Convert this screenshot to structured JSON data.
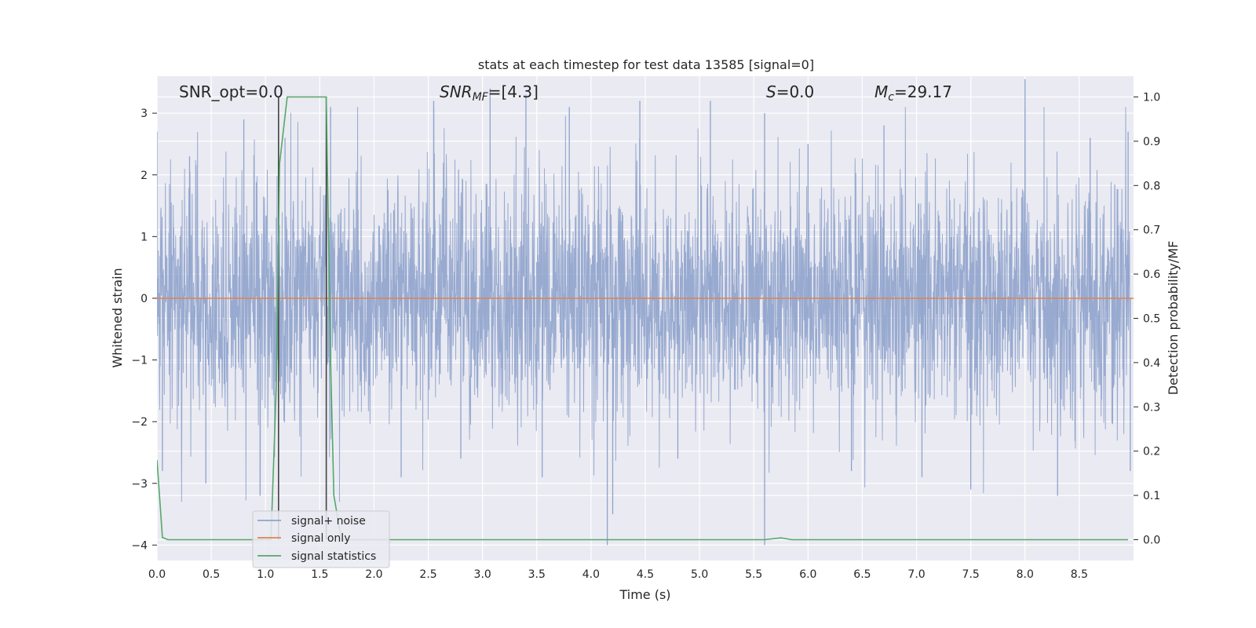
{
  "chart_data": {
    "type": "line",
    "title": "stats at each timestep for test data 13585 [signal=0]",
    "xlabel": "Time (s)",
    "ylabel": "Whitened strain",
    "y2label": "Detection probability/MF",
    "xlim": [
      0.0,
      9.0
    ],
    "ylim": [
      -4.25,
      3.6
    ],
    "y2lim": [
      -0.047,
      1.047
    ],
    "x_ticks": [
      "0.0",
      "0.5",
      "1.0",
      "1.5",
      "2.0",
      "2.5",
      "3.0",
      "3.5",
      "4.0",
      "4.5",
      "5.0",
      "5.5",
      "6.0",
      "6.5",
      "7.0",
      "7.5",
      "8.0",
      "8.5"
    ],
    "y_ticks": [
      "3",
      "2",
      "1",
      "0",
      "−1",
      "−2",
      "−3",
      "−4"
    ],
    "y2_ticks": [
      "1.0",
      "0.9",
      "0.8",
      "0.7",
      "0.6",
      "0.5",
      "0.4",
      "0.3",
      "0.2",
      "0.1",
      "0.0"
    ],
    "grid": true,
    "legend_position": "lower-left",
    "annotations": {
      "snr_opt": "SNR_opt=0.0",
      "snr_mf_a": "SNR",
      "snr_mf_sub": "MF",
      "snr_mf_b": "=[4.3]",
      "s_a": "S",
      "s_b": "=0.0",
      "mc_a": "M",
      "mc_sub": "c",
      "mc_b": "=29.17"
    },
    "series": [
      {
        "name": "signal+ noise",
        "color": "#8fa3cc",
        "axis": "left",
        "description_points": [
          [
            0.0,
            2.7
          ],
          [
            0.05,
            -2.8
          ],
          [
            0.3,
            2.3
          ],
          [
            0.45,
            -3.0
          ],
          [
            0.8,
            2.9
          ],
          [
            0.95,
            -3.2
          ],
          [
            1.18,
            2.6
          ],
          [
            1.6,
            3.1
          ],
          [
            2.25,
            -2.9
          ],
          [
            2.55,
            3.2
          ],
          [
            2.8,
            -2.6
          ],
          [
            3.07,
            3.4
          ],
          [
            3.4,
            3.3
          ],
          [
            3.55,
            -2.9
          ],
          [
            3.8,
            3.1
          ],
          [
            4.15,
            -4.0
          ],
          [
            4.2,
            -3.5
          ],
          [
            4.45,
            3.2
          ],
          [
            4.8,
            -2.6
          ],
          [
            5.1,
            3.2
          ],
          [
            5.6,
            -4.0
          ],
          [
            5.6,
            3.0
          ],
          [
            6.0,
            2.5
          ],
          [
            6.4,
            -2.8
          ],
          [
            6.7,
            2.8
          ],
          [
            7.05,
            -2.9
          ],
          [
            7.5,
            -3.1
          ],
          [
            8.0,
            3.55
          ],
          [
            8.3,
            -3.2
          ],
          [
            8.6,
            2.6
          ],
          [
            8.95,
            2.7
          ],
          [
            8.97,
            -2.8
          ]
        ]
      },
      {
        "name": "signal only",
        "color": "#dd8452",
        "axis": "left",
        "x": [
          0.0,
          9.0
        ],
        "y": [
          0.0,
          0.0
        ]
      },
      {
        "name": "signal statistics",
        "color": "#55a868",
        "axis": "right",
        "x": [
          0.0,
          0.05,
          0.1,
          0.2,
          0.5,
          0.9,
          1.0,
          1.05,
          1.1,
          1.13,
          1.2,
          1.3,
          1.4,
          1.5,
          1.56,
          1.6,
          1.63,
          1.7,
          2.0,
          3.0,
          4.0,
          5.0,
          5.5,
          5.6,
          5.75,
          5.85,
          6.0,
          7.0,
          8.0,
          8.95
        ],
        "y": [
          0.18,
          0.005,
          0.0,
          0.0,
          0.0,
          0.0,
          0.0,
          0.0,
          0.35,
          0.85,
          1.0,
          1.0,
          1.0,
          1.0,
          1.0,
          0.4,
          0.1,
          0.0,
          0.0,
          0.0,
          0.0,
          0.0,
          0.0,
          0.0,
          0.004,
          0.0,
          0.0,
          0.0,
          0.0,
          0.0
        ]
      }
    ],
    "vertical_markers": [
      1.12,
      1.56
    ]
  }
}
